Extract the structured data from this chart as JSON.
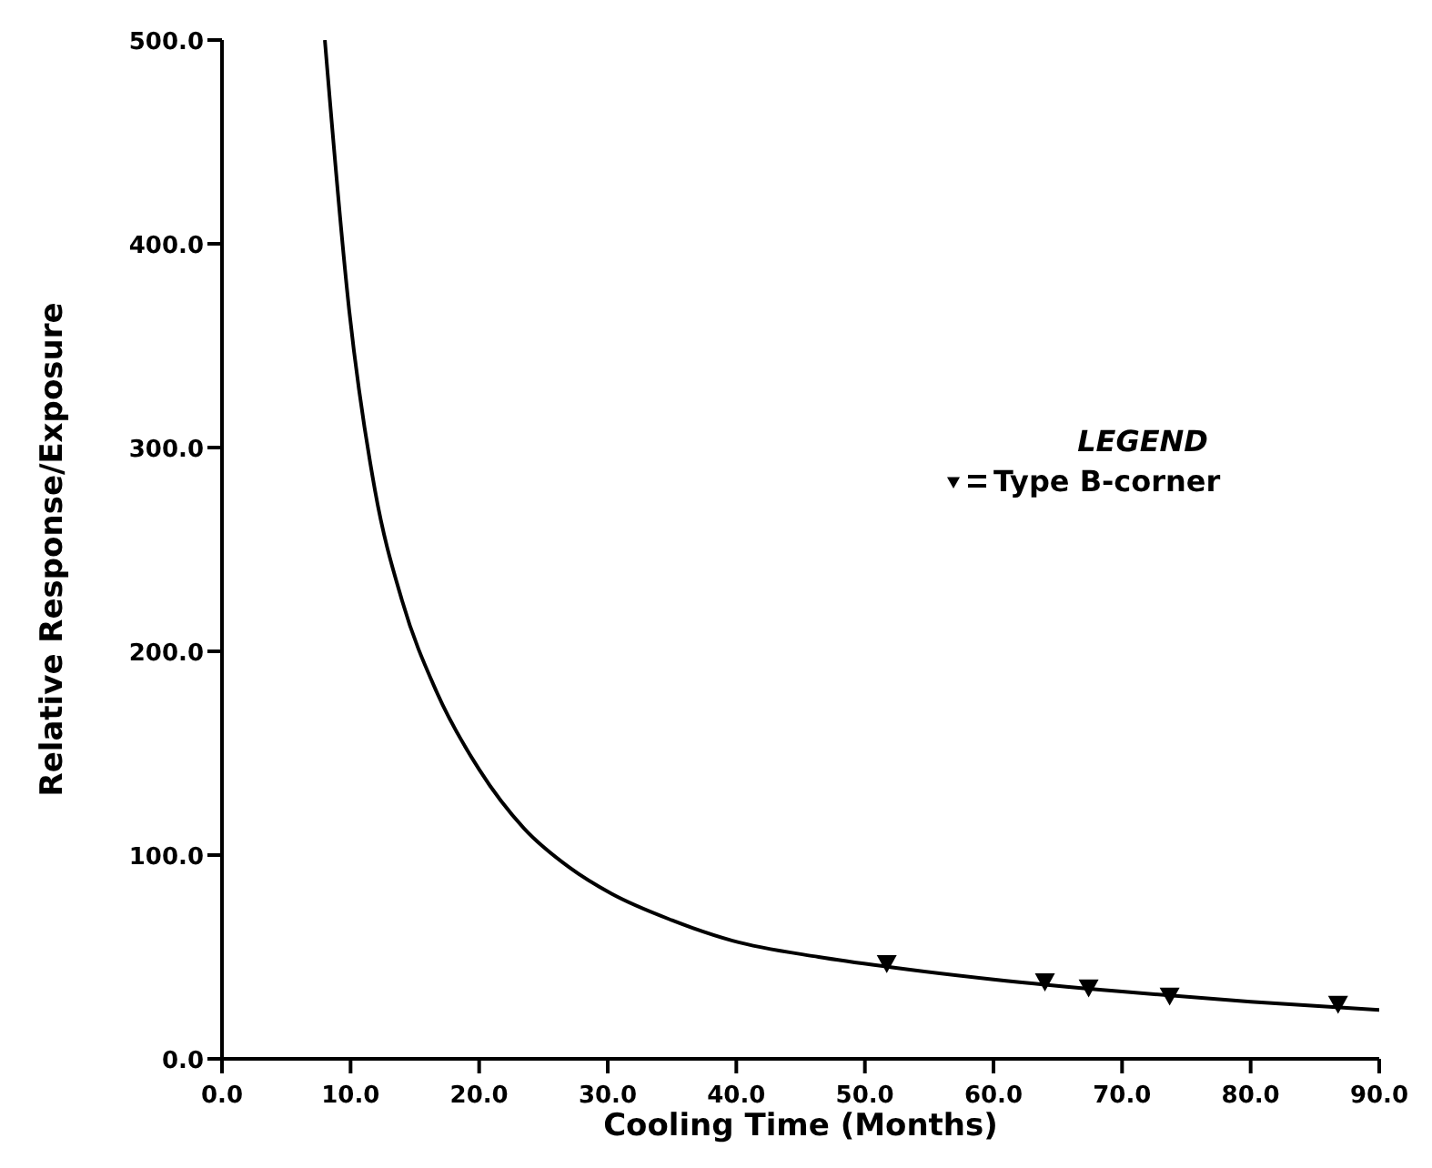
{
  "chart_data": {
    "type": "line",
    "xlabel": "Cooling Time (Months)",
    "ylabel": "Relative Response/Exposure",
    "legend_title": "LEGEND",
    "legend": "right",
    "xlim": [
      0,
      90
    ],
    "ylim": [
      0,
      500
    ],
    "xticks": [
      {
        "value": 0,
        "label": "0.0"
      },
      {
        "value": 10,
        "label": "10.0"
      },
      {
        "value": 20,
        "label": "20.0"
      },
      {
        "value": 30,
        "label": "30.0"
      },
      {
        "value": 40,
        "label": "40.0"
      },
      {
        "value": 50,
        "label": "50.0"
      },
      {
        "value": 60,
        "label": "60.0"
      },
      {
        "value": 70,
        "label": "70.0"
      },
      {
        "value": 80,
        "label": "80.0"
      },
      {
        "value": 90,
        "label": "90.0"
      }
    ],
    "yticks": [
      {
        "value": 0,
        "label": "0.0"
      },
      {
        "value": 100,
        "label": "100.0"
      },
      {
        "value": 200,
        "label": "200.0"
      },
      {
        "value": 300,
        "label": "300.0"
      },
      {
        "value": 400,
        "label": "400.0"
      },
      {
        "value": 500,
        "label": "500.0"
      }
    ],
    "series": [
      {
        "color": "#000000",
        "marker": "none",
        "line_style": "solid",
        "x": [
          8.0,
          9.9,
          11.9,
          14.0,
          16.7,
          20.0,
          23.5,
          27.0,
          30.3,
          35.0,
          39.7,
          46.4,
          52.0,
          60.0,
          70.0,
          80.0,
          90.0
        ],
        "values": [
          500,
          367,
          279,
          225,
          180,
          142,
          113,
          94,
          81,
          68,
          58,
          50,
          45,
          39,
          33,
          28,
          24
        ]
      },
      {
        "type": "scatter",
        "name": "Type B-corner",
        "color": "#000000",
        "marker": "triangle",
        "x": [
          51.7,
          64.0,
          67.4,
          73.7,
          86.8
        ],
        "values": [
          47,
          38,
          35,
          31,
          27
        ]
      }
    ]
  }
}
